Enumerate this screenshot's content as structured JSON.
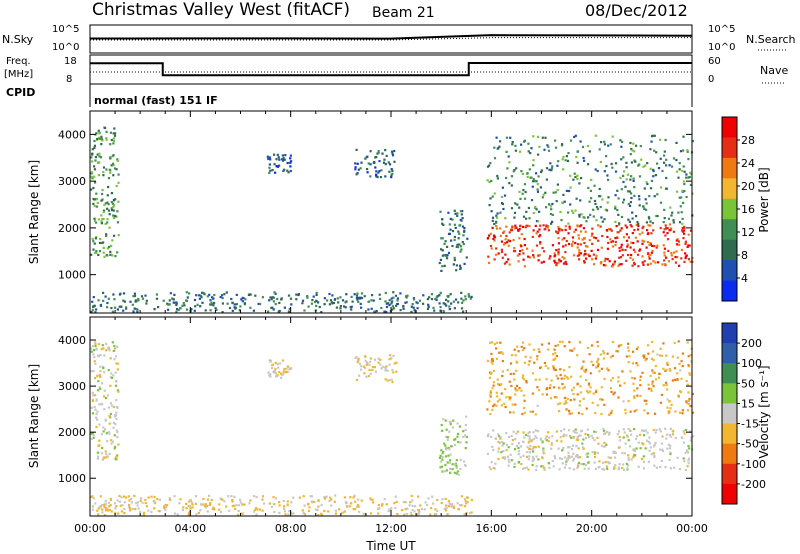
{
  "header": {
    "radar": "Christmas Valley West (fitACF)",
    "beam": "Beam 21",
    "date": "08/Dec/2012",
    "program": "normal (fast) 151 IF"
  },
  "summary_panels": {
    "nsky": {
      "label": "N.Sky",
      "ticks": [
        "10^5",
        "10^0"
      ],
      "right_label": "N.Search",
      "right_ticks": [
        "10^5",
        "10^0"
      ]
    },
    "freq": {
      "label_line1": "Freq.",
      "label_line2": "[MHz]",
      "ticks": [
        "18",
        "8"
      ],
      "right_label": "Nave",
      "right_ticks": [
        "60",
        "0"
      ],
      "cpid_label": "CPID"
    }
  },
  "colors": {
    "power_scale": [
      "#0a2cf0",
      "#1f4fb0",
      "#2f6c4f",
      "#3f8e53",
      "#79c53a",
      "#f2b630",
      "#f07a12",
      "#e62e14",
      "#f00000"
    ],
    "velocity_scale": [
      "#1f3fb0",
      "#2f5fa8",
      "#3f8e53",
      "#79c53a",
      "#c8c8c8",
      "#f2b630",
      "#f07a12",
      "#e62e14",
      "#f00000"
    ]
  },
  "chart_data": [
    {
      "type": "line",
      "title": "N.Sky / N.Search",
      "x": [
        "00:00",
        "04:00",
        "08:00",
        "12:00",
        "16:00",
        "20:00",
        "00:00"
      ],
      "series": [
        {
          "name": "N.Sky",
          "values": [
            400,
            420,
            430,
            380,
            2000,
            1800,
            1500
          ]
        },
        {
          "name": "N.Search",
          "values": [
            200,
            200,
            200,
            200,
            600,
            600,
            600
          ]
        }
      ],
      "ylabel": "N.Sky",
      "ylim": [
        1,
        100000
      ],
      "log_scale": true
    },
    {
      "type": "line",
      "title": "Freq. / Nave",
      "x_hours": [
        0.0,
        2.9,
        2.9,
        15.1,
        15.1,
        24.0
      ],
      "series": [
        {
          "name": "Freq. [MHz]",
          "values": [
            15.5,
            15.5,
            10.7,
            10.7,
            15.6,
            15.6
          ]
        },
        {
          "name": "Nave",
          "values": [
            24,
            24,
            24,
            24,
            24,
            24
          ]
        }
      ],
      "ylabel": "Freq. [MHz]",
      "ylim": [
        8,
        18
      ],
      "y2lim": [
        0,
        60
      ]
    },
    {
      "type": "heatmap",
      "title": "Power",
      "xlabel": "",
      "ylabel": "Slant Range [km]",
      "xlim": [
        "00:00",
        "00:00"
      ],
      "x_ticks": [
        "00:00",
        "04:00",
        "08:00",
        "12:00",
        "16:00",
        "20:00",
        "00:00"
      ],
      "ylim": [
        180,
        4500
      ],
      "y_ticks": [
        "1000",
        "2000",
        "3000",
        "4000"
      ],
      "colorbar": {
        "label": "Power [dB]",
        "range": [
          0,
          32
        ],
        "ticks": [
          "4",
          "8",
          "12",
          "16",
          "20",
          "24",
          "28"
        ]
      },
      "features": [
        {
          "desc": "near-range band",
          "hours": [
            0.0,
            15.2
          ],
          "range_km": [
            220,
            650
          ],
          "dB": 8
        },
        {
          "desc": "early patch",
          "hours": [
            0.0,
            1.1
          ],
          "range_km": [
            1400,
            4200
          ],
          "dB": 12
        },
        {
          "desc": "cluster",
          "hours": [
            7.0,
            8.0
          ],
          "range_km": [
            3200,
            3600
          ],
          "dB": 6
        },
        {
          "desc": "cluster",
          "hours": [
            10.5,
            12.2
          ],
          "range_km": [
            3100,
            3700
          ],
          "dB": 6
        },
        {
          "desc": "streak",
          "hours": [
            13.9,
            15.0
          ],
          "range_km": [
            1100,
            2400
          ],
          "dB": 8
        },
        {
          "desc": "strong band",
          "hours": [
            15.8,
            24.0
          ],
          "range_km": [
            1200,
            2100
          ],
          "dB": 28
        },
        {
          "desc": "upper scatter",
          "hours": [
            15.8,
            24.0
          ],
          "range_km": [
            2100,
            4000
          ],
          "dB": 10
        }
      ]
    },
    {
      "type": "heatmap",
      "title": "Velocity",
      "xlabel": "Time UT",
      "ylabel": "Slant Range [km]",
      "xlim": [
        "00:00",
        "00:00"
      ],
      "x_ticks": [
        "00:00",
        "04:00",
        "08:00",
        "12:00",
        "16:00",
        "20:00",
        "00:00"
      ],
      "ylim": [
        180,
        4500
      ],
      "y_ticks": [
        "1000",
        "2000",
        "3000",
        "4000"
      ],
      "colorbar": {
        "label": "Velocity [m s⁻¹]",
        "range": [
          -250,
          250
        ],
        "ticks": [
          "200",
          "100",
          "50",
          "15",
          "-15",
          "-50",
          "-100",
          "-200"
        ]
      },
      "features": [
        {
          "desc": "near-range band",
          "hours": [
            0.0,
            15.2
          ],
          "range_km": [
            220,
            650
          ],
          "v": -40
        },
        {
          "desc": "early patch",
          "hours": [
            0.0,
            1.1
          ],
          "range_km": [
            1400,
            4000
          ],
          "v": 0
        },
        {
          "desc": "cluster",
          "hours": [
            7.0,
            8.0
          ],
          "range_km": [
            3200,
            3600
          ],
          "v": -30
        },
        {
          "desc": "cluster",
          "hours": [
            10.5,
            12.2
          ],
          "range_km": [
            3100,
            3700
          ],
          "v": -20
        },
        {
          "desc": "streak",
          "hours": [
            13.9,
            15.0
          ],
          "range_km": [
            1100,
            2400
          ],
          "v": 40
        },
        {
          "desc": "ground scatter band",
          "hours": [
            15.8,
            24.0
          ],
          "range_km": [
            1200,
            2100
          ],
          "v": 0
        },
        {
          "desc": "upper scatter",
          "hours": [
            15.8,
            24.0
          ],
          "range_km": [
            2400,
            4000
          ],
          "v": -80
        }
      ]
    }
  ]
}
